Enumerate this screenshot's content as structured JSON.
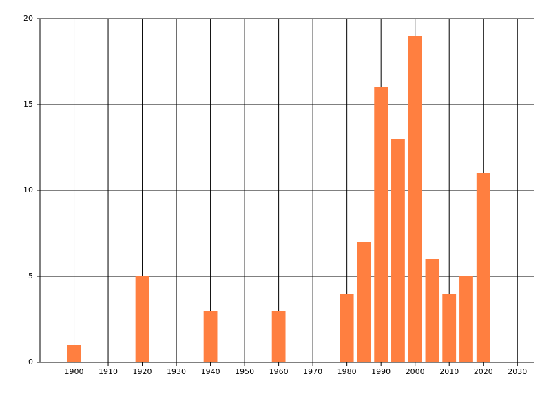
{
  "chart_data": {
    "type": "bar",
    "x": [
      1900,
      1920,
      1940,
      1960,
      1980,
      1985,
      1990,
      1995,
      2000,
      2005,
      2010,
      2015,
      2020
    ],
    "values": [
      1,
      5,
      3,
      3,
      4,
      7,
      16,
      13,
      19,
      6,
      4,
      5,
      11
    ],
    "color": "#ff7f40",
    "xlim": [
      1890,
      2035
    ],
    "xticks": [
      1900,
      1910,
      1920,
      1930,
      1940,
      1950,
      1960,
      1970,
      1980,
      1990,
      2000,
      2010,
      2020,
      2030
    ],
    "ylim": [
      0,
      20
    ],
    "yticks": [
      0,
      5,
      10,
      15,
      20
    ],
    "bar_width": 4,
    "grid": true
  }
}
